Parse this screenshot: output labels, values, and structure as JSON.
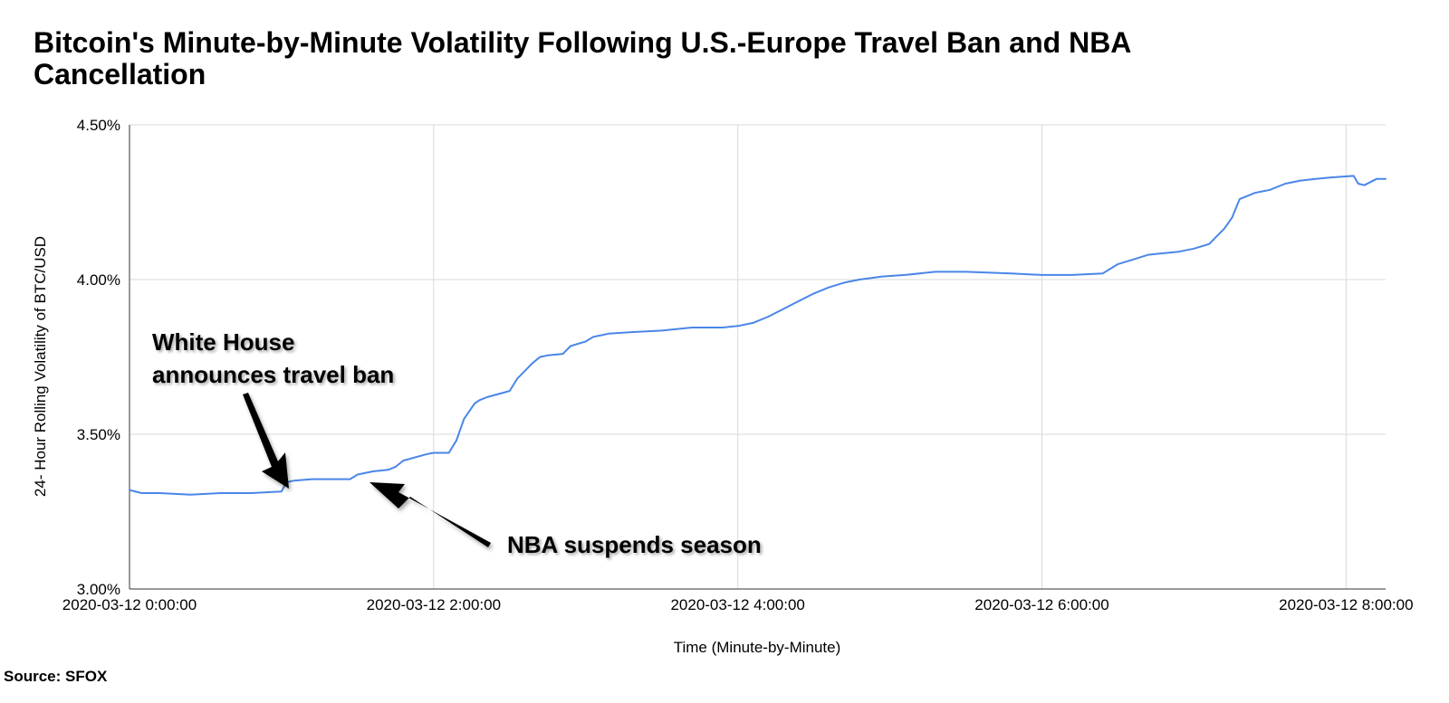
{
  "chart_data": {
    "type": "line",
    "title": "Bitcoin's Minute-by-Minute Volatility Following U.S.-Europe Travel Ban and NBA Cancellation",
    "xlabel": "Time (Minute-by-Minute)",
    "ylabel": "24- Hour Rolling Volatility of BTC/USD",
    "ylim": [
      3.0,
      4.5
    ],
    "xlim_hours": [
      0,
      8.26
    ],
    "y_ticks": [
      3.0,
      3.5,
      4.0,
      4.5
    ],
    "y_tick_labels": [
      "3.00%",
      "3.50%",
      "4.00%",
      "4.50%"
    ],
    "x_ticks": [
      0,
      2,
      4,
      6,
      8
    ],
    "x_tick_labels": [
      "2020-03-12 0:00:00",
      "2020-03-12 2:00:00",
      "2020-03-12 4:00:00",
      "2020-03-12 6:00:00",
      "2020-03-12 8:00:00"
    ],
    "grid": true,
    "line_color": "#4a86e8",
    "series": [
      {
        "x": [
          0,
          0.08,
          0.2,
          0.4,
          0.6,
          0.8,
          1.0,
          1.03,
          1.08,
          1.2,
          1.3,
          1.45,
          1.5,
          1.6,
          1.7,
          1.75,
          1.8,
          1.95,
          2.0,
          2.1,
          2.15,
          2.2,
          2.27,
          2.3,
          2.35,
          2.5,
          2.55,
          2.6,
          2.65,
          2.7,
          2.75,
          2.85,
          2.9,
          3.0,
          3.05,
          3.1,
          3.15,
          3.3,
          3.5,
          3.7,
          3.9,
          4.0,
          4.1,
          4.2,
          4.3,
          4.4,
          4.5,
          4.6,
          4.7,
          4.8,
          4.95,
          5.1,
          5.3,
          5.5,
          5.8,
          6.0,
          6.2,
          6.4,
          6.5,
          6.6,
          6.7,
          6.8,
          6.9,
          7.0,
          7.1,
          7.15,
          7.2,
          7.25,
          7.3,
          7.4,
          7.5,
          7.6,
          7.7,
          7.8,
          7.9,
          8.05,
          8.08,
          8.12,
          8.2,
          8.26
        ],
        "y": [
          3.32,
          3.31,
          3.31,
          3.305,
          3.31,
          3.31,
          3.315,
          3.345,
          3.35,
          3.355,
          3.355,
          3.355,
          3.37,
          3.38,
          3.385,
          3.395,
          3.415,
          3.435,
          3.44,
          3.44,
          3.48,
          3.55,
          3.6,
          3.61,
          3.62,
          3.64,
          3.68,
          3.705,
          3.73,
          3.75,
          3.755,
          3.76,
          3.785,
          3.8,
          3.815,
          3.82,
          3.825,
          3.83,
          3.835,
          3.845,
          3.845,
          3.85,
          3.86,
          3.88,
          3.905,
          3.93,
          3.955,
          3.975,
          3.99,
          4.0,
          4.01,
          4.015,
          4.025,
          4.025,
          4.02,
          4.015,
          4.015,
          4.02,
          4.05,
          4.065,
          4.08,
          4.085,
          4.09,
          4.1,
          4.115,
          4.14,
          4.165,
          4.2,
          4.26,
          4.28,
          4.29,
          4.31,
          4.32,
          4.325,
          4.33,
          4.335,
          4.31,
          4.305,
          4.325,
          4.325
        ]
      }
    ]
  },
  "annotations": {
    "travel_ban": [
      "White House",
      "announces travel ban"
    ],
    "nba": "NBA suspends season"
  },
  "source": "Source: SFOX"
}
